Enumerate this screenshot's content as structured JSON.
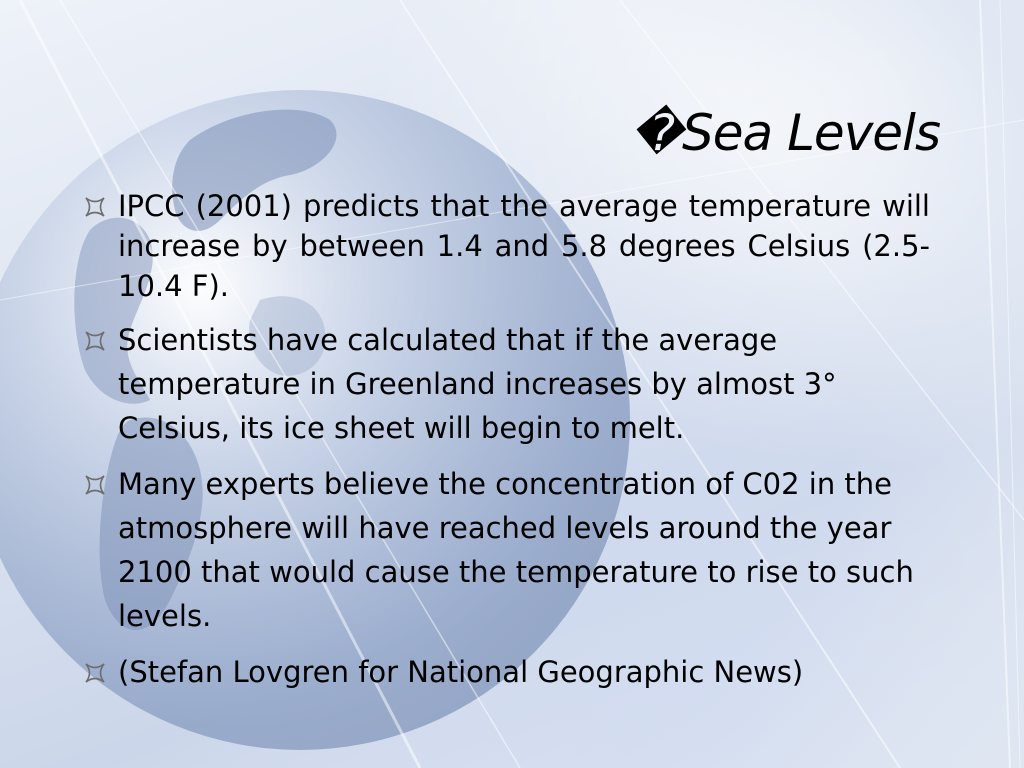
{
  "slide": {
    "title_icon": "�",
    "title": "Sea Levels",
    "bullets": [
      {
        "text": "IPCC (2001) predicts that the average temperature will increase by between 1.4 and 5.8 degrees Celsius (2.5- 10.4 F)."
      },
      {
        "text_before": "Scientists have calculated that if the average temperature in Greenland increases by almost 3°",
        "text_after": "Celsius, its ice sheet will begin to melt."
      },
      {
        "text": "Many experts believe the concentration of C02 in the atmosphere will have reached levels around the year 2100 that would cause the temperature to rise to such levels."
      },
      {
        "text": "(Stefan Lovgren for National Geographic News)"
      }
    ],
    "bullet_icon": "quadrilateral-star-icon",
    "background": "globe-icon",
    "colors": {
      "text": "#000000",
      "background": "#dfe6f2"
    }
  }
}
